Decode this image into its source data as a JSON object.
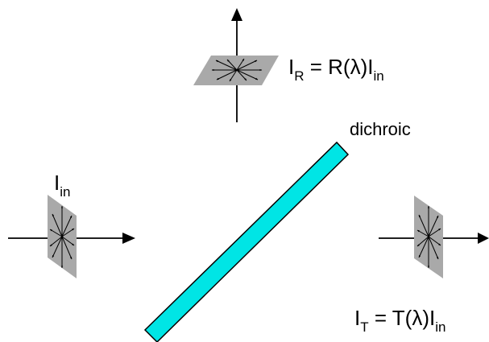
{
  "labels": {
    "incident": {
      "main": "I",
      "sub": "in"
    },
    "reflected": {
      "main": "I",
      "sub": "R",
      "mid": " = R(",
      "lambda": "λ",
      "close": ")I",
      "sub2": "in"
    },
    "transmitted": {
      "main": "I",
      "sub": "T",
      "mid": " = T(",
      "lambda": "λ",
      "close": ")I",
      "sub2": "in"
    },
    "mirror": "dichroic"
  },
  "colors": {
    "mirror_fill": "#00E5E5",
    "mirror_stroke": "#000000",
    "polarization_plane": "#A9A9A9",
    "line": "#000000"
  }
}
